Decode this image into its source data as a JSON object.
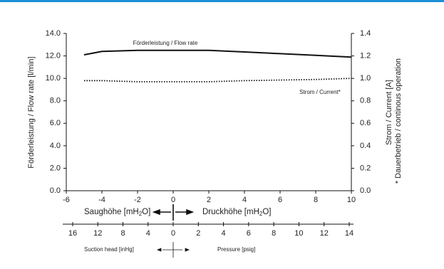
{
  "chart_data": {
    "type": "line",
    "y_label": "Förderleistung / Flow rate [l/min]",
    "y2_label": "Strom / Current [A]",
    "y2_note": "* Dauerbetrieb / continous operation",
    "x": [
      -5,
      -4,
      -2,
      0,
      2,
      4,
      6,
      8,
      10
    ],
    "series": [
      {
        "name": "Förderleistung / Flow rate",
        "color": "#111111",
        "dash": "solid",
        "values": [
          12.1,
          12.4,
          12.5,
          12.5,
          12.5,
          12.35,
          12.2,
          12.05,
          11.9
        ]
      },
      {
        "name": "Strom / Current*",
        "color": "#111111",
        "dash": "dotted",
        "axis": "y2",
        "values": [
          0.98,
          0.98,
          0.97,
          0.97,
          0.97,
          0.98,
          0.985,
          0.99,
          1.0
        ]
      }
    ],
    "xlim": [
      -6,
      10
    ],
    "xticks": [
      -6,
      -4,
      -2,
      0,
      2,
      4,
      6,
      8,
      10
    ],
    "ylim": [
      0,
      14
    ],
    "yticks": [
      {
        "value": 0,
        "label": "0.0"
      },
      {
        "value": 2,
        "label": "2.0"
      },
      {
        "value": 4,
        "label": "4.0"
      },
      {
        "value": 6,
        "label": "6.0"
      },
      {
        "value": 8,
        "label": "8.0"
      },
      {
        "value": 10,
        "label": "10.0"
      },
      {
        "value": 12,
        "label": "12.0"
      },
      {
        "value": 14,
        "label": "14.0"
      }
    ],
    "y2lim": [
      0,
      1.4
    ],
    "y2ticks": [
      {
        "value": 0,
        "label": "0.0"
      },
      0.2,
      0.4,
      0.6,
      0.8,
      {
        "value": 1,
        "label": "1.0"
      },
      1.2,
      1.4
    ],
    "suction_mh2o": {
      "before": "Saughöhe [mH",
      "sub": "2",
      "after": "O]"
    },
    "pressure_mh2o": {
      "before": "Druckhöhe [mH",
      "sub": "2",
      "after": "O]"
    },
    "suction_lim": [
      0,
      16
    ],
    "suction_ticks": [
      16,
      12,
      8,
      4
    ],
    "pressure_lim": [
      0,
      14
    ],
    "pressure_ticks": [
      0,
      2,
      4,
      6,
      8,
      10,
      12,
      14
    ],
    "suction_label": "Suction head [inHg]",
    "pressure_label": "Pressure [psig]"
  }
}
